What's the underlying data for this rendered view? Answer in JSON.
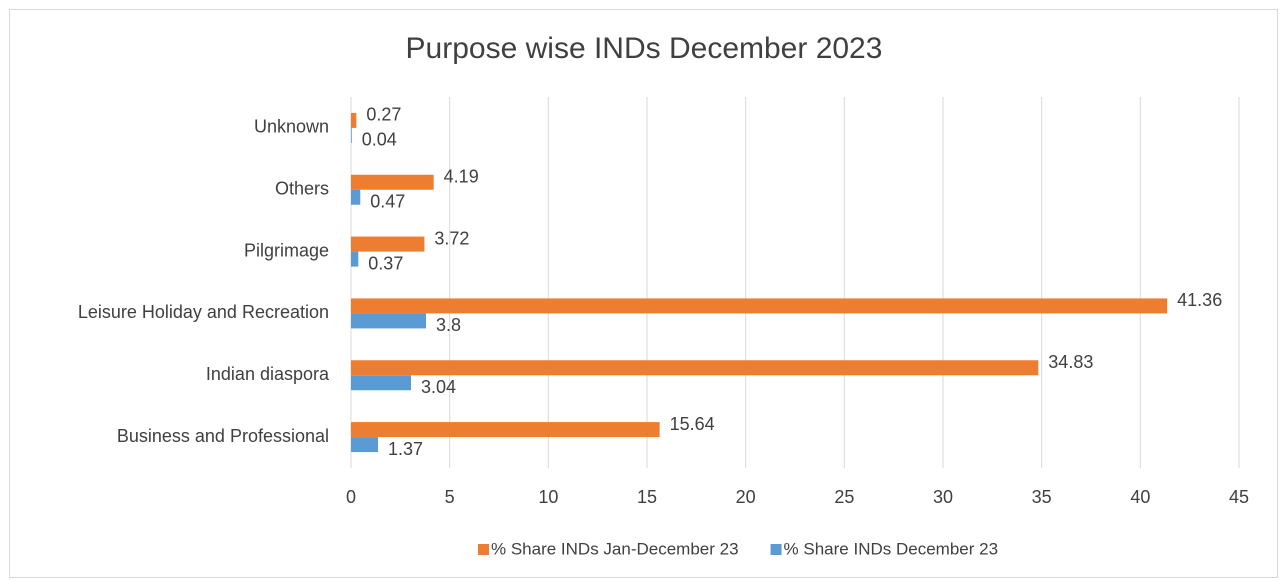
{
  "chart_data": {
    "type": "hbar",
    "title": "Purpose wise INDs December 2023",
    "categories": [
      "Business and Professional",
      "Indian diaspora",
      "Leisure Holiday and Recreation",
      "Pilgrimage",
      "Others",
      "Unknown"
    ],
    "series": [
      {
        "name": "% Share INDs Jan-December 23",
        "color": "#ed7d31",
        "values": [
          15.64,
          34.83,
          41.36,
          3.72,
          4.19,
          0.27
        ]
      },
      {
        "name": "% Share INDs December 23",
        "color": "#5b9bd5",
        "values": [
          1.37,
          3.04,
          3.8,
          0.37,
          0.47,
          0.04
        ]
      }
    ],
    "xlim": [
      0,
      45
    ],
    "xticks": [
      0,
      5,
      10,
      15,
      20,
      25,
      30,
      35,
      40,
      45
    ],
    "grid": true,
    "legend": "bottom"
  }
}
